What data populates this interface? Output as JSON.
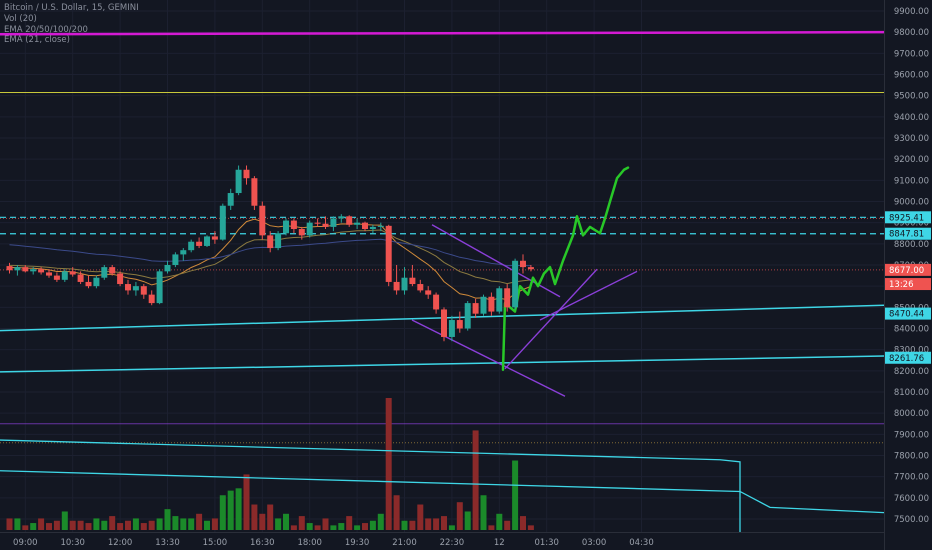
{
  "legend": {
    "symbol": "Bitcoin / U.S. Dollar, 15, GEMINI",
    "vol": "Vol (20)",
    "ema1": "EMA 20/50/100/200",
    "ema2": "EMA (21, close)"
  },
  "colors": {
    "background": "#131722",
    "up": "#26a69a",
    "down": "#ef5350",
    "vol_up": "#1b8a2a",
    "vol_down": "#8b2a2a",
    "cyan": "#3ed6e6",
    "magenta": "#d41ad4",
    "yellow": "#c8c83a",
    "purple": "#8a3fd8",
    "green_drawing": "#28c828"
  },
  "chart_data": {
    "type": "candlestick",
    "y_axis": {
      "ticks": [
        "9900.00",
        "9800.00",
        "9700.00",
        "9600.00",
        "9500.00",
        "9400.00",
        "9300.00",
        "9200.00",
        "9100.00",
        "9000.00",
        "8900.00",
        "8800.00",
        "8700.00",
        "8600.00",
        "8500.00",
        "8400.00",
        "8300.00",
        "8200.00",
        "8100.00",
        "8000.00",
        "7900.00",
        "7800.00",
        "7700.00",
        "7600.00",
        "7500.00"
      ],
      "range": [
        7450,
        9980
      ]
    },
    "x_axis": {
      "ticks": [
        "09:00",
        "10:30",
        "12:00",
        "13:30",
        "15:00",
        "16:30",
        "18:00",
        "19:30",
        "21:00",
        "22:30",
        "12",
        "01:30",
        "03:00",
        "04:30"
      ],
      "first_candle_time": "08:30",
      "interval_minutes": 15
    },
    "candles": [
      [
        8695,
        8710,
        8660,
        8675
      ],
      [
        8675,
        8700,
        8650,
        8690
      ],
      [
        8690,
        8700,
        8665,
        8670
      ],
      [
        8670,
        8690,
        8655,
        8680
      ],
      [
        8680,
        8690,
        8655,
        8665
      ],
      [
        8665,
        8680,
        8640,
        8650
      ],
      [
        8650,
        8665,
        8620,
        8630
      ],
      [
        8630,
        8680,
        8620,
        8670
      ],
      [
        8670,
        8690,
        8645,
        8655
      ],
      [
        8655,
        8670,
        8610,
        8620
      ],
      [
        8620,
        8650,
        8590,
        8600
      ],
      [
        8600,
        8650,
        8590,
        8640
      ],
      [
        8640,
        8700,
        8630,
        8690
      ],
      [
        8690,
        8700,
        8650,
        8660
      ],
      [
        8660,
        8670,
        8600,
        8610
      ],
      [
        8610,
        8630,
        8560,
        8580
      ],
      [
        8580,
        8620,
        8555,
        8600
      ],
      [
        8600,
        8610,
        8540,
        8560
      ],
      [
        8560,
        8580,
        8510,
        8520
      ],
      [
        8520,
        8680,
        8515,
        8670
      ],
      [
        8670,
        8720,
        8660,
        8700
      ],
      [
        8700,
        8760,
        8690,
        8750
      ],
      [
        8750,
        8780,
        8720,
        8770
      ],
      [
        8770,
        8820,
        8760,
        8810
      ],
      [
        8810,
        8830,
        8780,
        8790
      ],
      [
        8790,
        8840,
        8785,
        8835
      ],
      [
        8835,
        8860,
        8800,
        8820
      ],
      [
        8820,
        8990,
        8815,
        8980
      ],
      [
        8980,
        9060,
        8960,
        9040
      ],
      [
        9040,
        9170,
        9030,
        9150
      ],
      [
        9150,
        9170,
        9080,
        9110
      ],
      [
        9110,
        9120,
        8960,
        8980
      ],
      [
        8980,
        9000,
        8820,
        8840
      ],
      [
        8840,
        8860,
        8760,
        8780
      ],
      [
        8780,
        8860,
        8770,
        8850
      ],
      [
        8850,
        8920,
        8840,
        8910
      ],
      [
        8910,
        8920,
        8850,
        8870
      ],
      [
        8870,
        8880,
        8820,
        8840
      ],
      [
        8840,
        8910,
        8830,
        8900
      ],
      [
        8900,
        8920,
        8880,
        8895
      ],
      [
        8895,
        8930,
        8870,
        8880
      ],
      [
        8880,
        8930,
        8860,
        8920
      ],
      [
        8920,
        8940,
        8900,
        8930
      ],
      [
        8930,
        8935,
        8880,
        8890
      ],
      [
        8890,
        8920,
        8870,
        8900
      ],
      [
        8900,
        8905,
        8860,
        8870
      ],
      [
        8870,
        8890,
        8850,
        8880
      ],
      [
        8880,
        8900,
        8860,
        8885
      ],
      [
        8885,
        8890,
        8600,
        8620
      ],
      [
        8620,
        8700,
        8560,
        8580
      ],
      [
        8580,
        8690,
        8560,
        8640
      ],
      [
        8640,
        8700,
        8600,
        8610
      ],
      [
        8610,
        8630,
        8570,
        8580
      ],
      [
        8580,
        8600,
        8540,
        8560
      ],
      [
        8560,
        8570,
        8470,
        8490
      ],
      [
        8490,
        8500,
        8340,
        8360
      ],
      [
        8360,
        8460,
        8340,
        8440
      ],
      [
        8440,
        8480,
        8380,
        8400
      ],
      [
        8400,
        8530,
        8390,
        8520
      ],
      [
        8520,
        8540,
        8450,
        8470
      ],
      [
        8470,
        8560,
        8460,
        8550
      ],
      [
        8550,
        8570,
        8460,
        8480
      ],
      [
        8480,
        8600,
        8470,
        8590
      ],
      [
        8590,
        8610,
        8480,
        8500
      ],
      [
        8500,
        8730,
        8490,
        8720
      ],
      [
        8720,
        8750,
        8660,
        8690
      ],
      [
        8690,
        8700,
        8670,
        8680
      ]
    ],
    "volumes": [
      5,
      5,
      2,
      3,
      5,
      3,
      4,
      8,
      4,
      4,
      3,
      5,
      4,
      6,
      3,
      4,
      5,
      3,
      4,
      5,
      9,
      6,
      5,
      5,
      7,
      4,
      5,
      15,
      17,
      18,
      24,
      11,
      7,
      11,
      5,
      7,
      2,
      6,
      3,
      2,
      5,
      2,
      3,
      6,
      2,
      3,
      4,
      7,
      57,
      15,
      4,
      4,
      11,
      5,
      5,
      6,
      2,
      12,
      8,
      43,
      15,
      2,
      7,
      4,
      30,
      6,
      2
    ]
  },
  "price_tags": [
    {
      "value": "8925.41",
      "price": 8925.41,
      "type": "cyan"
    },
    {
      "value": "8847.81",
      "price": 8847.81,
      "type": "cyan"
    },
    {
      "value": "8677.00",
      "price": 8677.0,
      "type": "red"
    },
    {
      "value": "13:26",
      "price": 8610,
      "type": "red-timer"
    },
    {
      "value": "8470.44",
      "price": 8470.44,
      "type": "cyan"
    },
    {
      "value": "8261.76",
      "price": 8261.76,
      "type": "cyan"
    }
  ]
}
